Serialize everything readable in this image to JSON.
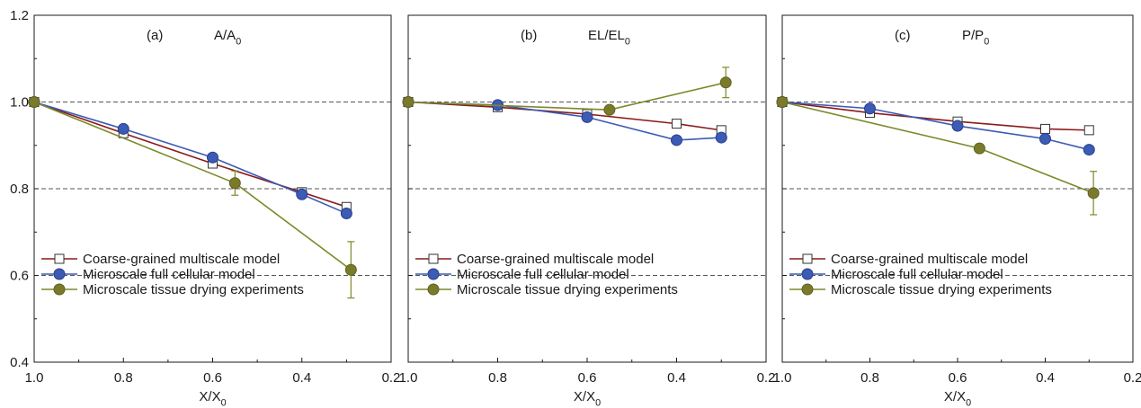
{
  "chart_data": [
    {
      "type": "line",
      "panel_label": "(a)",
      "title_main": "A/A",
      "title_sub": "0",
      "xlabel_main": "X/X",
      "xlabel_sub": "0",
      "ylabel": "",
      "xlim": [
        1.0,
        0.2
      ],
      "ylim": [
        0.4,
        1.2
      ],
      "x_ticks": [
        "1.0",
        "0.8",
        "0.6",
        "0.4",
        "0.2"
      ],
      "y_ticks": [
        "0.4",
        "0.6",
        "0.8",
        "1.0",
        "1.2"
      ],
      "reference_lines": [
        0.6,
        0.8,
        1.0
      ],
      "legend_position": "lower-left",
      "series": [
        {
          "name": "Coarse-grained multiscale model",
          "x": [
            1.0,
            0.8,
            0.6,
            0.4,
            0.3
          ],
          "y": [
            1.0,
            0.928,
            0.858,
            0.792,
            0.758
          ]
        },
        {
          "name": "Microscale full cellular model",
          "x": [
            1.0,
            0.8,
            0.6,
            0.4,
            0.3
          ],
          "y": [
            1.0,
            0.938,
            0.872,
            0.787,
            0.743
          ]
        },
        {
          "name": "Microscale tissue drying experiments",
          "x": [
            1.0,
            0.55,
            0.29
          ],
          "y": [
            1.0,
            0.813,
            0.613
          ],
          "yerr": [
            0,
            0.028,
            0.065
          ]
        }
      ]
    },
    {
      "type": "line",
      "panel_label": "(b)",
      "title_main": "EL/EL",
      "title_sub": "0",
      "xlabel_main": "X/X",
      "xlabel_sub": "0",
      "ylabel": "",
      "xlim": [
        1.0,
        0.2
      ],
      "ylim": [
        0.4,
        1.2
      ],
      "x_ticks": [
        "1.0",
        "0.8",
        "0.6",
        "0.4",
        "0.2"
      ],
      "y_ticks": [],
      "reference_lines": [
        0.6,
        0.8,
        1.0
      ],
      "legend_position": "lower-left",
      "series": [
        {
          "name": "Coarse-grained multiscale model",
          "x": [
            1.0,
            0.8,
            0.6,
            0.4,
            0.3
          ],
          "y": [
            1.0,
            0.988,
            0.972,
            0.95,
            0.935
          ]
        },
        {
          "name": "Microscale full cellular model",
          "x": [
            1.0,
            0.8,
            0.6,
            0.4,
            0.3
          ],
          "y": [
            1.0,
            0.993,
            0.965,
            0.912,
            0.918
          ]
        },
        {
          "name": "Microscale tissue drying experiments",
          "x": [
            1.0,
            0.55,
            0.29
          ],
          "y": [
            1.0,
            0.982,
            1.045
          ],
          "yerr": [
            0,
            0.008,
            0.035
          ]
        }
      ]
    },
    {
      "type": "line",
      "panel_label": "(c)",
      "title_main": "P/P",
      "title_sub": "0",
      "xlabel_main": "X/X",
      "xlabel_sub": "0",
      "ylabel": "",
      "xlim": [
        1.0,
        0.2
      ],
      "ylim": [
        0.4,
        1.2
      ],
      "x_ticks": [
        "1.0",
        "0.8",
        "0.6",
        "0.4",
        "0.2"
      ],
      "y_ticks": [],
      "reference_lines": [
        0.6,
        0.8,
        1.0
      ],
      "legend_position": "lower-left",
      "series": [
        {
          "name": "Coarse-grained multiscale model",
          "x": [
            1.0,
            0.8,
            0.6,
            0.4,
            0.3
          ],
          "y": [
            1.0,
            0.975,
            0.955,
            0.938,
            0.935
          ]
        },
        {
          "name": "Microscale full cellular model",
          "x": [
            1.0,
            0.8,
            0.6,
            0.4,
            0.3
          ],
          "y": [
            1.0,
            0.985,
            0.945,
            0.915,
            0.89
          ]
        },
        {
          "name": "Microscale tissue drying experiments",
          "x": [
            1.0,
            0.55,
            0.29
          ],
          "y": [
            1.0,
            0.893,
            0.79
          ],
          "yerr": [
            0,
            0.01,
            0.05
          ]
        }
      ]
    }
  ],
  "colors": {
    "coarse": "#8b1a1a",
    "cellular": "#3b5bb5",
    "experiment": "#7c8a2a",
    "experiment_marker": "#7a7a2a",
    "reference_line": "#555555",
    "axis": "#1a1a1a"
  },
  "markers": {
    "coarse": "open-square",
    "cellular": "filled-circle",
    "experiment": "filled-circle"
  }
}
